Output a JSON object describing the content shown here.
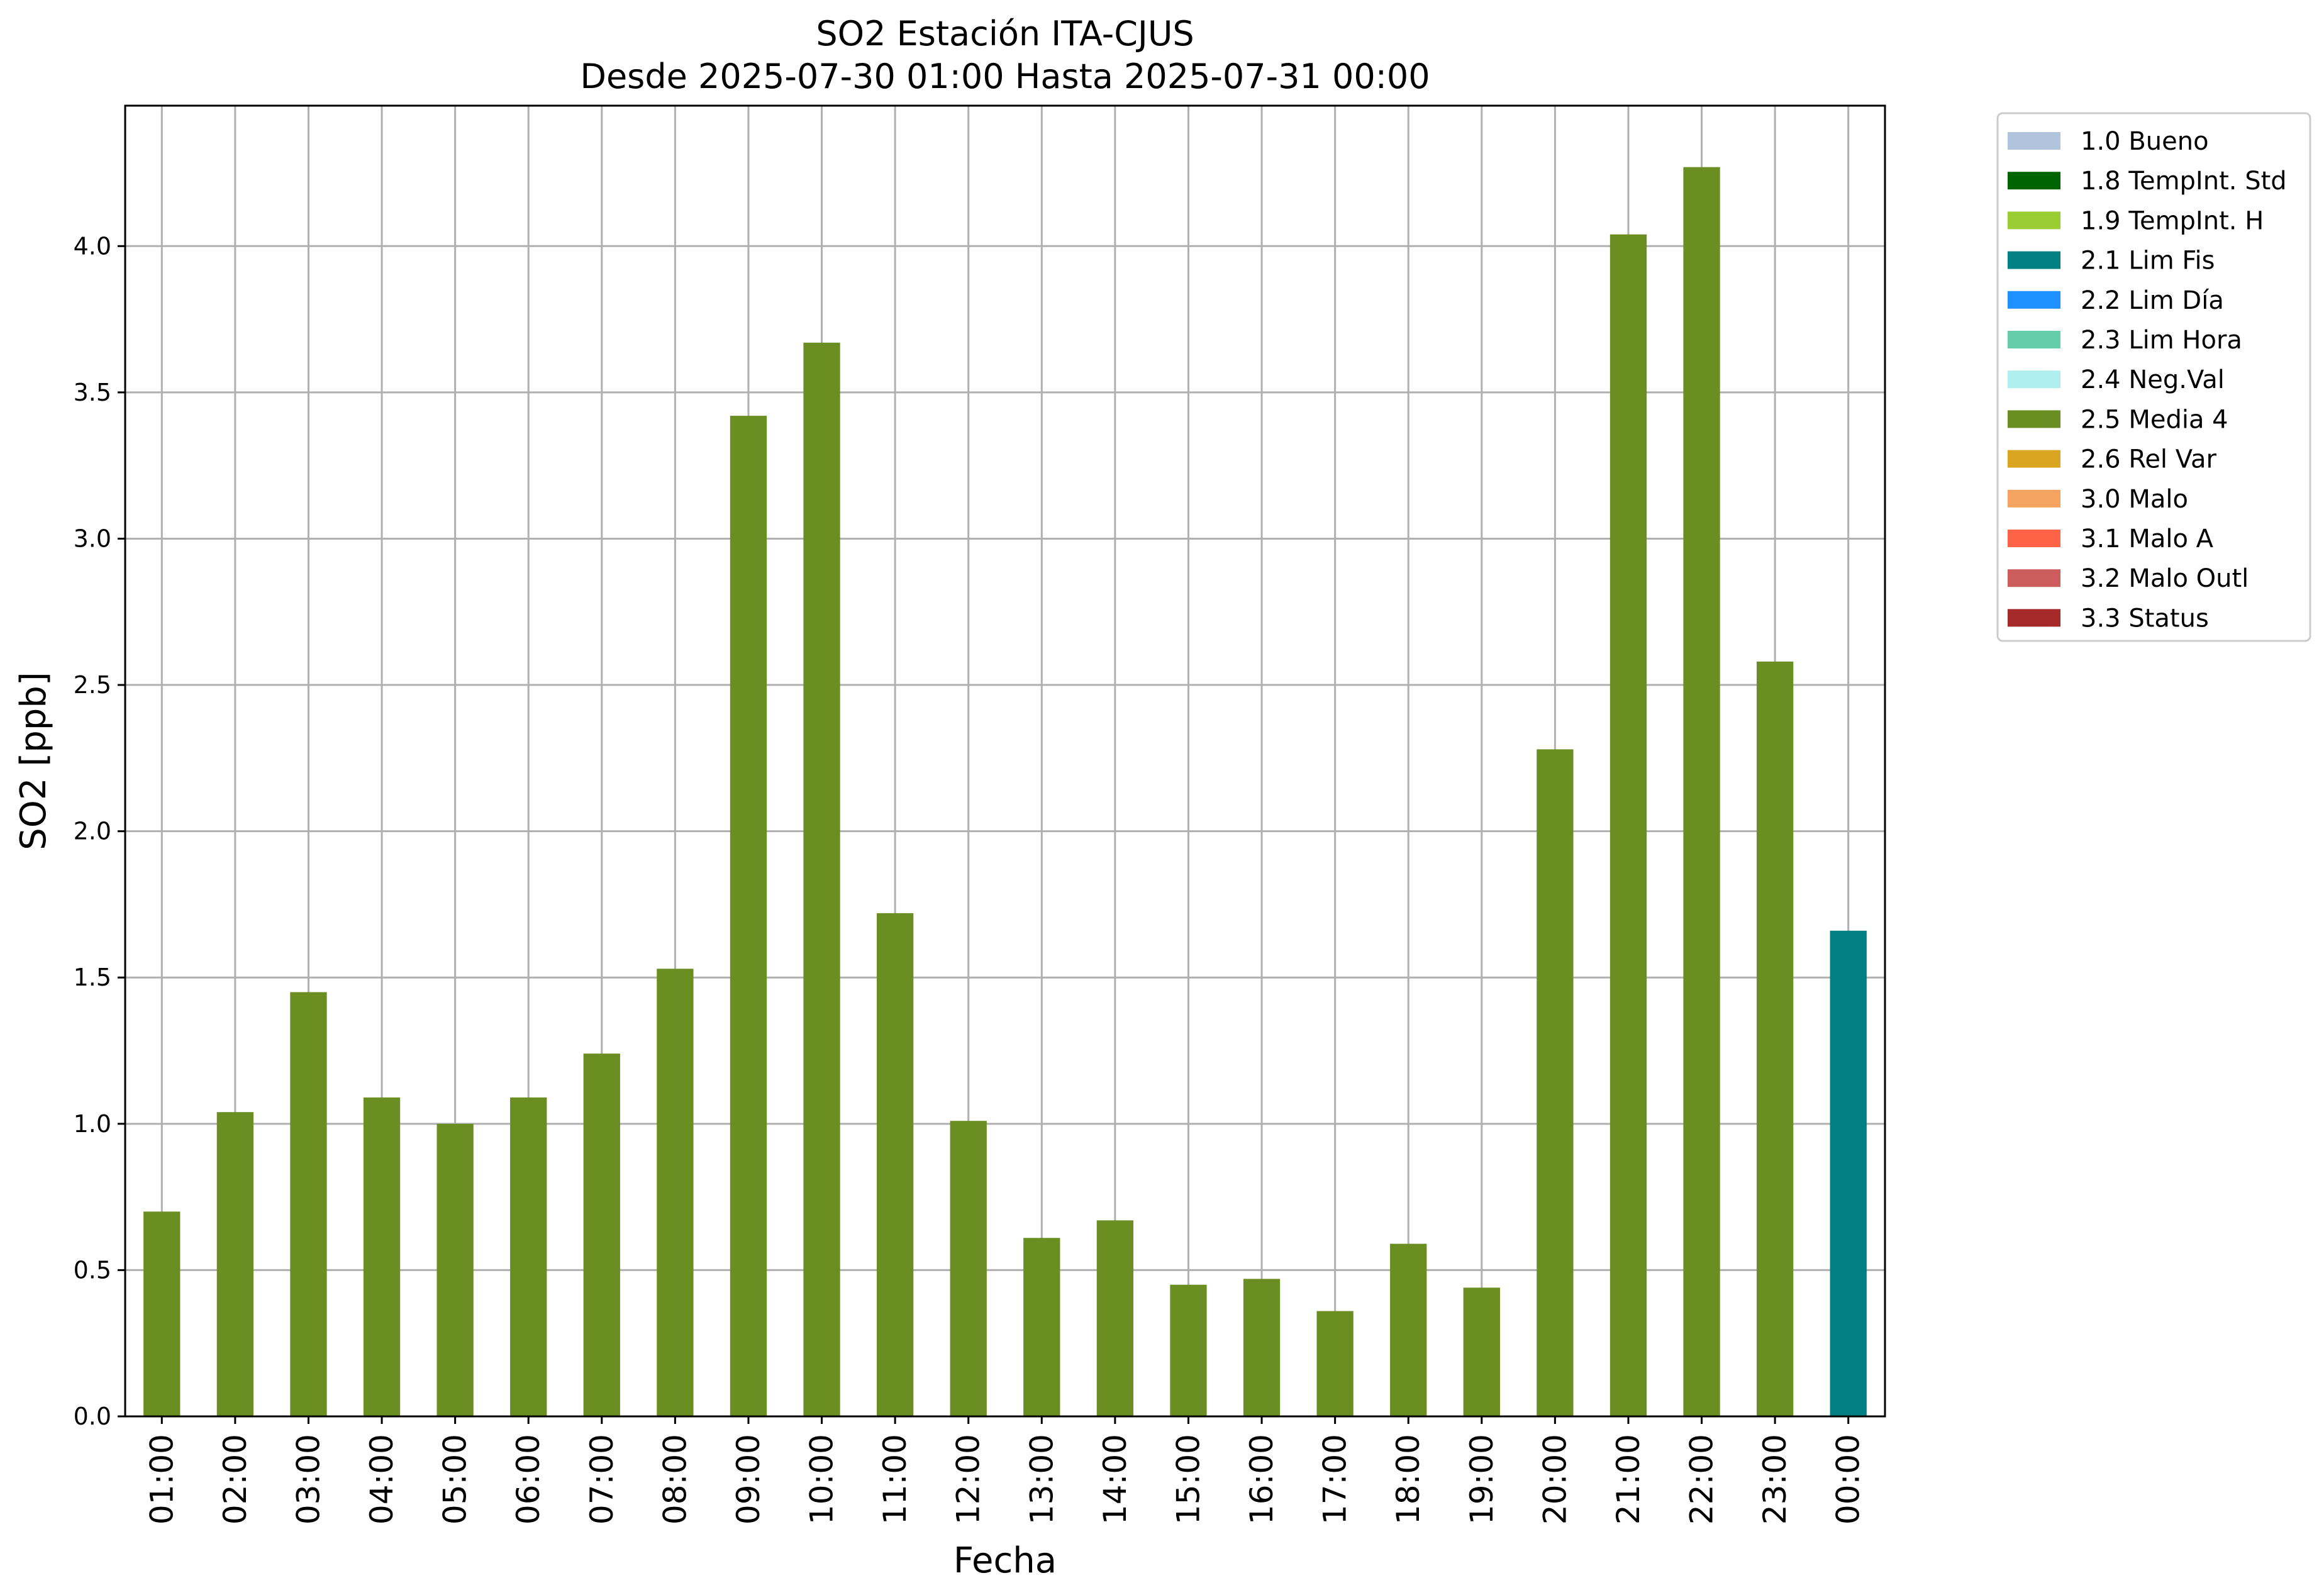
{
  "chart_data": {
    "type": "bar",
    "title": "SO2 Estación ITA-CJUS",
    "subtitle": "Desde 2025-07-30 01:00 Hasta 2025-07-31 00:00",
    "xlabel": "Fecha",
    "ylabel": "SO2 [ppb]",
    "ylim": [
      0,
      4.48
    ],
    "yticks": [
      "0.0",
      "0.5",
      "1.0",
      "1.5",
      "2.0",
      "2.5",
      "3.0",
      "3.5",
      "4.0"
    ],
    "grid": true,
    "legend_position": "outside-top-right",
    "categories": [
      "01:00",
      "02:00",
      "03:00",
      "04:00",
      "05:00",
      "06:00",
      "07:00",
      "08:00",
      "09:00",
      "10:00",
      "11:00",
      "12:00",
      "13:00",
      "14:00",
      "15:00",
      "16:00",
      "17:00",
      "18:00",
      "19:00",
      "20:00",
      "21:00",
      "22:00",
      "23:00",
      "00:00"
    ],
    "values": [
      0.7,
      1.04,
      1.45,
      1.09,
      1.0,
      1.09,
      1.24,
      1.53,
      3.42,
      3.67,
      1.72,
      1.01,
      0.61,
      0.67,
      0.45,
      0.47,
      0.36,
      0.59,
      0.44,
      2.28,
      4.04,
      4.27,
      2.58,
      1.66
    ],
    "flags": [
      "2.5 Media 4",
      "2.5 Media 4",
      "2.5 Media 4",
      "2.5 Media 4",
      "2.5 Media 4",
      "2.5 Media 4",
      "2.5 Media 4",
      "2.5 Media 4",
      "2.5 Media 4",
      "2.5 Media 4",
      "2.5 Media 4",
      "2.5 Media 4",
      "2.5 Media 4",
      "2.5 Media 4",
      "2.5 Media 4",
      "2.5 Media 4",
      "2.5 Media 4",
      "2.5 Media 4",
      "2.5 Media 4",
      "2.5 Media 4",
      "2.5 Media 4",
      "2.5 Media 4",
      "2.5 Media 4",
      "2.1 Lim Fis"
    ],
    "legend": [
      {
        "label": "1.0 Bueno",
        "color": "#b0c4de"
      },
      {
        "label": "1.8 TempInt. Std",
        "color": "#006400"
      },
      {
        "label": "1.9 TempInt. H",
        "color": "#9acd32"
      },
      {
        "label": "2.1 Lim Fis",
        "color": "#008080"
      },
      {
        "label": "2.2 Lim Día",
        "color": "#1e90ff"
      },
      {
        "label": "2.3 Lim Hora",
        "color": "#66cdaa"
      },
      {
        "label": "2.4 Neg.Val",
        "color": "#afeeee"
      },
      {
        "label": "2.5 Media 4",
        "color": "#6b8e23"
      },
      {
        "label": "2.6 Rel Var",
        "color": "#daa520"
      },
      {
        "label": "3.0 Malo",
        "color": "#f4a460"
      },
      {
        "label": "3.1 Malo A",
        "color": "#ff6347"
      },
      {
        "label": "3.2 Malo Outl",
        "color": "#cd5c5c"
      },
      {
        "label": "3.3 Status",
        "color": "#a52a2a"
      }
    ]
  }
}
